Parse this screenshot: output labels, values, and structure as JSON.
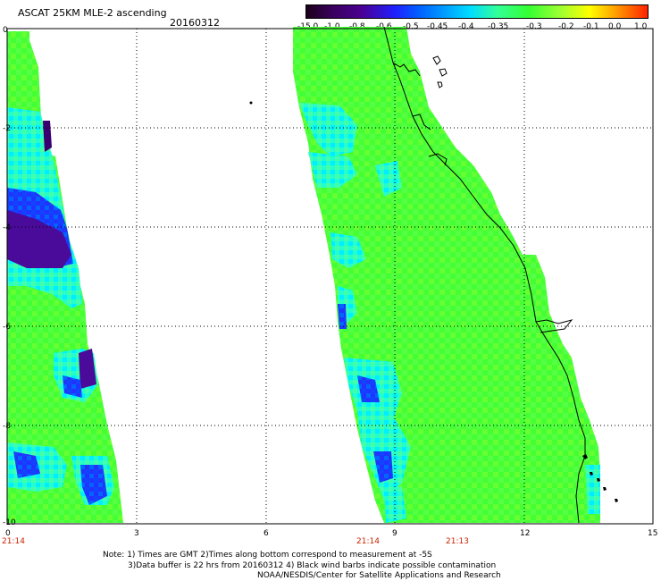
{
  "header": {
    "title": "ASCAT 25KM MLE-2 ascending",
    "date": "20160312"
  },
  "colorbar": {
    "labels": [
      "-15.0",
      "-1.0",
      "-0.8",
      "-0.6",
      "-0.5",
      "-0.45",
      "-0.4",
      "-0.35",
      "-0.3",
      "-0.2",
      "-0.1",
      "0.0",
      "1.0"
    ]
  },
  "axes": {
    "x_ticks": [
      "0",
      "3",
      "6",
      "9",
      "12",
      "15"
    ],
    "y_ticks": [
      "0",
      "-2",
      "-4",
      "-6",
      "-8",
      "-10"
    ]
  },
  "time_labels": [
    "21:14",
    "21:14",
    "21:13"
  ],
  "notes": [
    "Note: 1) Times are GMT 2)Times along bottom correspond to measurement at -5S",
    "3)Data buffer is 22 hrs from 20160312 4) Black wind barbs indicate possible contamination",
    "NOAA/NESDIS/Center for Satellite Applications and Research"
  ],
  "colors": {
    "dark_purple": "#3a0060",
    "blue": "#2020ff",
    "cyan": "#00ddff",
    "aqua": "#33ff99",
    "green": "#33ff33",
    "light_green": "#88ff33"
  }
}
